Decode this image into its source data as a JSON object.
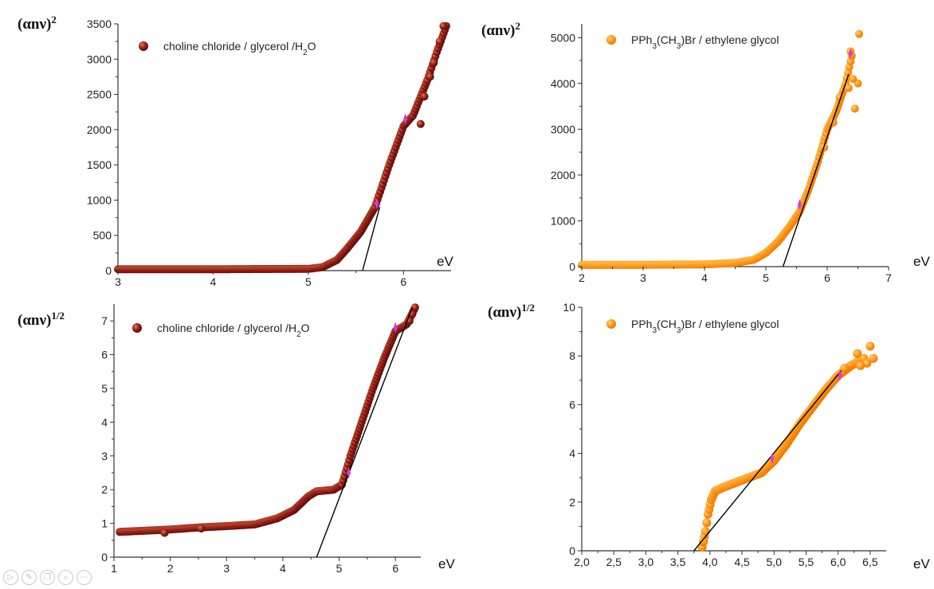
{
  "colors": {
    "series_dark": "#8b1a1a",
    "series_dark_hi": "#d06040",
    "series_orange": "#ff9c1a",
    "series_orange_hi": "#ffc060",
    "fit_line": "#000000",
    "marker": "#d63bd6"
  },
  "toolbar": {
    "icons": [
      "play-icon",
      "edit-icon",
      "copy-icon",
      "zoom-icon",
      "more-icon"
    ]
  },
  "chart_data": [
    {
      "id": "tl",
      "type": "scatter",
      "ylabel": "(αnν)",
      "ylabel_sup": "2",
      "xunit": "eV",
      "legend": "choline chloride / glycerol /H",
      "legend_sub": "2",
      "legend_tail": "O",
      "series_color": "#8b1a1a",
      "xlim": [
        3,
        6.5
      ],
      "ylim": [
        0,
        3500
      ],
      "xticks": [
        3,
        4,
        5,
        6
      ],
      "xticklabels": [
        "3",
        "4",
        "5",
        "6"
      ],
      "yticks": [
        0,
        500,
        1000,
        1500,
        2000,
        2500,
        3000,
        3500
      ],
      "yticklabels": [
        "0",
        "500",
        "1000",
        "1500",
        "2000",
        "2500",
        "3000",
        "3500"
      ],
      "curve": [
        [
          3.0,
          20
        ],
        [
          4.0,
          20
        ],
        [
          5.0,
          25
        ],
        [
          5.15,
          50
        ],
        [
          5.3,
          150
        ],
        [
          5.4,
          300
        ],
        [
          5.55,
          550
        ],
        [
          5.7,
          900
        ],
        [
          5.85,
          1500
        ],
        [
          6.0,
          2050
        ],
        [
          6.1,
          2200
        ],
        [
          6.25,
          2700
        ],
        [
          6.35,
          3100
        ],
        [
          6.45,
          3470
        ]
      ],
      "extra_points": [
        [
          6.18,
          2080
        ],
        [
          6.22,
          2470
        ],
        [
          6.32,
          2950
        ],
        [
          6.28,
          2750
        ],
        [
          6.38,
          3250
        ],
        [
          6.42,
          3470
        ]
      ],
      "fit": [
        [
          5.57,
          0
        ],
        [
          5.75,
          900
        ]
      ],
      "markers": [
        [
          5.72,
          950
        ],
        [
          6.02,
          2150
        ]
      ]
    },
    {
      "id": "tr",
      "type": "scatter",
      "ylabel": "(αnν)",
      "ylabel_sup": "2",
      "xunit": "eV",
      "legend": "PPh",
      "legend_sub": "3",
      "legend_tail": "(CH",
      "legend_sub2": "3",
      "legend_tail2": ")Br / ethylene glycol",
      "series_color": "#ff9c1a",
      "xlim": [
        2,
        7
      ],
      "ylim": [
        0,
        5300
      ],
      "xticks": [
        2,
        3,
        4,
        5,
        6,
        7
      ],
      "xticklabels": [
        "2",
        "3",
        "4",
        "5",
        "6",
        "7"
      ],
      "yticks": [
        0,
        1000,
        2000,
        3000,
        4000,
        5000
      ],
      "yticklabels": [
        "0",
        "1000",
        "2000",
        "3000",
        "4000",
        "5000"
      ],
      "curve": [
        [
          2.0,
          40
        ],
        [
          3.0,
          40
        ],
        [
          4.0,
          50
        ],
        [
          4.5,
          80
        ],
        [
          4.8,
          150
        ],
        [
          5.0,
          300
        ],
        [
          5.2,
          550
        ],
        [
          5.4,
          900
        ],
        [
          5.55,
          1200
        ],
        [
          5.7,
          1700
        ],
        [
          5.85,
          2300
        ],
        [
          6.0,
          3000
        ],
        [
          6.15,
          3400
        ],
        [
          6.3,
          4000
        ],
        [
          6.4,
          4600
        ]
      ],
      "extra_points": [
        [
          6.45,
          3450
        ],
        [
          6.5,
          4000
        ],
        [
          6.35,
          3900
        ],
        [
          6.42,
          4100
        ],
        [
          6.52,
          5080
        ],
        [
          6.38,
          4700
        ],
        [
          6.1,
          3150
        ],
        [
          6.2,
          3700
        ],
        [
          5.95,
          2600
        ]
      ],
      "fit": [
        [
          5.28,
          0
        ],
        [
          6.35,
          4200
        ]
      ],
      "markers": [
        [
          5.55,
          1350
        ],
        [
          6.38,
          4650
        ]
      ]
    },
    {
      "id": "bl",
      "type": "scatter",
      "ylabel": "(αnν)",
      "ylabel_sup": "1/2",
      "xunit": "eV",
      "legend": "choline chloride / glycerol /H",
      "legend_sub": "2",
      "legend_tail": "O",
      "series_color": "#8b1a1a",
      "xlim": [
        1,
        6.45
      ],
      "ylim": [
        0,
        7.5
      ],
      "xticks": [
        1,
        2,
        3,
        4,
        5,
        6
      ],
      "xticklabels": [
        "1",
        "2",
        "3",
        "4",
        "5",
        "6"
      ],
      "yticks": [
        0,
        1,
        2,
        3,
        4,
        5,
        6,
        7
      ],
      "yticklabels": [
        "0",
        "1",
        "2",
        "3",
        "4",
        "5",
        "6",
        "7"
      ],
      "curve": [
        [
          1.1,
          0.75
        ],
        [
          1.5,
          0.78
        ],
        [
          2.0,
          0.82
        ],
        [
          2.5,
          0.88
        ],
        [
          3.0,
          0.92
        ],
        [
          3.5,
          0.97
        ],
        [
          3.9,
          1.15
        ],
        [
          4.2,
          1.4
        ],
        [
          4.45,
          1.8
        ],
        [
          4.6,
          1.95
        ],
        [
          4.9,
          2.0
        ],
        [
          5.05,
          2.15
        ],
        [
          5.2,
          3.0
        ],
        [
          5.4,
          4.0
        ],
        [
          5.6,
          5.0
        ],
        [
          5.8,
          5.9
        ],
        [
          6.0,
          6.7
        ],
        [
          6.2,
          6.9
        ],
        [
          6.35,
          7.4
        ]
      ],
      "extra_points": [
        [
          1.9,
          0.72
        ],
        [
          2.55,
          0.85
        ],
        [
          6.25,
          7.0
        ],
        [
          6.3,
          7.2
        ]
      ],
      "fit": [
        [
          4.6,
          0
        ],
        [
          6.3,
          7.4
        ]
      ],
      "markers": [
        [
          5.17,
          2.5
        ],
        [
          6.0,
          6.8
        ]
      ]
    },
    {
      "id": "br",
      "type": "scatter",
      "ylabel": "(αnν)",
      "ylabel_sup": "1/2",
      "xunit": "eV",
      "legend": "PPh",
      "legend_sub": "3",
      "legend_tail": "(CH",
      "legend_sub2": "3",
      "legend_tail2": ")Br / ethylene glycol",
      "series_color": "#ff9c1a",
      "xlim": [
        2.0,
        6.75
      ],
      "ylim": [
        0,
        10
      ],
      "xticks": [
        2.0,
        2.5,
        3.0,
        3.5,
        4.0,
        4.5,
        5.0,
        5.5,
        6.0,
        6.5
      ],
      "xticklabels": [
        "2,0",
        "2,5",
        "3,0",
        "3,5",
        "4,0",
        "4,5",
        "5,0",
        "5,5",
        "6,0",
        "6,5"
      ],
      "yticks": [
        0,
        2,
        4,
        6,
        8,
        10
      ],
      "yticklabels": [
        "0",
        "2",
        "4",
        "6",
        "8",
        "10"
      ],
      "curve": [
        [
          3.88,
          0.15
        ],
        [
          3.93,
          0.8
        ],
        [
          3.97,
          1.5
        ],
        [
          4.02,
          2.1
        ],
        [
          4.08,
          2.45
        ],
        [
          4.2,
          2.6
        ],
        [
          4.5,
          2.9
        ],
        [
          4.8,
          3.2
        ],
        [
          5.0,
          3.7
        ],
        [
          5.2,
          4.4
        ],
        [
          5.4,
          5.2
        ],
        [
          5.6,
          5.9
        ],
        [
          5.8,
          6.6
        ],
        [
          6.0,
          7.2
        ],
        [
          6.2,
          7.6
        ],
        [
          6.4,
          7.9
        ]
      ],
      "extra_points": [
        [
          6.5,
          8.4
        ],
        [
          6.45,
          7.7
        ],
        [
          6.3,
          8.1
        ],
        [
          6.55,
          7.9
        ],
        [
          6.35,
          7.6
        ],
        [
          6.1,
          7.5
        ],
        [
          3.9,
          0.4
        ]
      ],
      "fit": [
        [
          3.75,
          0
        ],
        [
          6.05,
          7.4
        ]
      ],
      "markers": [
        [
          4.97,
          3.8
        ],
        [
          6.03,
          7.2
        ]
      ]
    }
  ]
}
